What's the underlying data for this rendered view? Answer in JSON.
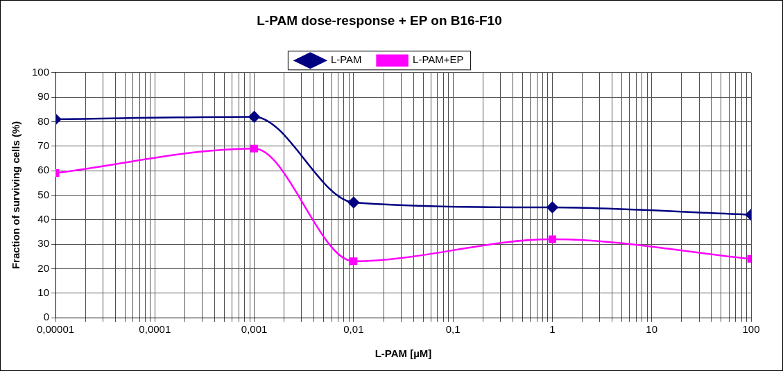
{
  "chart_data": {
    "type": "line",
    "title": "L-PAM dose-response + EP on B16-F10",
    "xlabel": "L-PAM [µM]",
    "ylabel": "Fraction of surviving cells (%)",
    "x": [
      1e-05,
      0.001,
      0.01,
      1,
      100
    ],
    "series": [
      {
        "name": "L-PAM",
        "color": "#000080",
        "marker": "diamond",
        "values": [
          81,
          82,
          47,
          45,
          42
        ]
      },
      {
        "name": "L-PAM+EP",
        "color": "#ff00ff",
        "marker": "square",
        "values": [
          59,
          69,
          23,
          32,
          24
        ]
      }
    ],
    "log": "x",
    "xlim": [
      1e-05,
      100
    ],
    "xticks": [
      {
        "value": 1e-05,
        "label": "0,00001"
      },
      {
        "value": 0.0001,
        "label": "0,0001"
      },
      {
        "value": 0.001,
        "label": "0,001"
      },
      {
        "value": 0.01,
        "label": "0,01"
      },
      {
        "value": 0.1,
        "label": "0,1"
      },
      {
        "value": 1,
        "label": "1"
      },
      {
        "value": 10,
        "label": "10"
      },
      {
        "value": 100,
        "label": "100"
      }
    ],
    "ylim": [
      0,
      100
    ],
    "yticks": [
      0,
      10,
      20,
      30,
      40,
      50,
      60,
      70,
      80,
      90,
      100
    ],
    "grid": true,
    "legend": "top"
  }
}
